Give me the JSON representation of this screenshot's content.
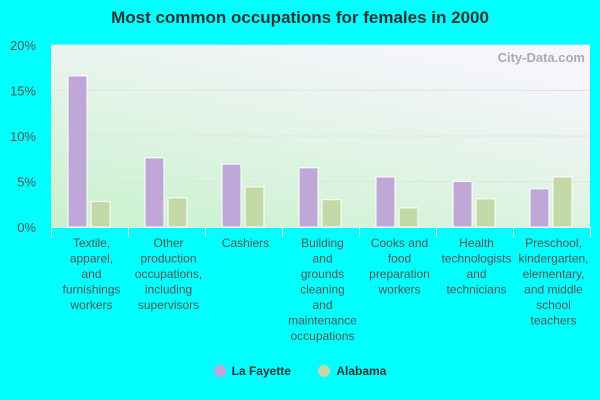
{
  "chart_data": {
    "type": "bar",
    "title": "Most common occupations for females in 2000",
    "categories": [
      [
        "Textile,",
        "apparel,",
        "and",
        "furnishings",
        "workers"
      ],
      [
        "Other",
        "production",
        "occupations,",
        "including",
        "supervisors"
      ],
      [
        "Cashiers"
      ],
      [
        "Building",
        "and",
        "grounds",
        "cleaning",
        "and",
        "maintenance",
        "occupations"
      ],
      [
        "Cooks and",
        "food",
        "preparation",
        "workers"
      ],
      [
        "Health",
        "technologists",
        "and",
        "technicians"
      ],
      [
        "Preschool,",
        "kindergarten,",
        "elementary,",
        "and middle",
        "school",
        "teachers"
      ]
    ],
    "series": [
      {
        "name": "La Fayette",
        "color": "#bfa8d8",
        "values": [
          16.6,
          7.6,
          6.9,
          6.5,
          5.5,
          5.0,
          4.2
        ]
      },
      {
        "name": "Alabama",
        "color": "#c4d9a8",
        "values": [
          2.8,
          3.2,
          4.4,
          3.0,
          2.1,
          3.1,
          5.5
        ]
      }
    ],
    "ylim": [
      0,
      20
    ],
    "yticks": [
      "0%",
      "5%",
      "10%",
      "15%",
      "20%"
    ],
    "grid": true,
    "legend": "bottom",
    "watermark": "City-Data.com"
  }
}
